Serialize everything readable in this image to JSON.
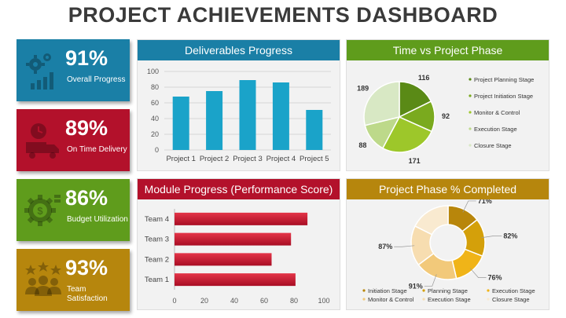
{
  "title": "PROJECT ACHIEVEMENTS DASHBOARD",
  "kpis": [
    {
      "value": "91%",
      "label": "Overall Progress",
      "color": "#1a7fa6",
      "icon": "gears-chart-icon"
    },
    {
      "value": "89%",
      "label": "On Time Delivery",
      "color": "#b3112b",
      "icon": "delivery-truck-clock-icon"
    },
    {
      "value": "86%",
      "label": "Budget Utilization",
      "color": "#5f9c1c",
      "icon": "money-gear-icon"
    },
    {
      "value": "93%",
      "label": "Team Satisfaction",
      "color": "#b6860d",
      "icon": "team-stars-icon"
    }
  ],
  "panels": {
    "deliverables": {
      "title": "Deliverables Progress",
      "color": "#1a7fa6"
    },
    "time_phase": {
      "title": "Time vs Project Phase",
      "color": "#5f9c1c"
    },
    "module": {
      "title": "Module Progress (Performance Score)",
      "color": "#b3112b"
    },
    "phase_pct": {
      "title": "Project Phase % Completed",
      "color": "#b6860d"
    }
  },
  "chart_data": [
    {
      "type": "bar",
      "title": "Deliverables Progress",
      "categories": [
        "Project 1",
        "Project 2",
        "Project 3",
        "Project 4",
        "Project 5"
      ],
      "values": [
        68,
        75,
        89,
        86,
        51
      ],
      "yticks": [
        "0",
        "20",
        "40",
        "60",
        "80",
        "100"
      ],
      "ylim": [
        0,
        100
      ],
      "grid": true,
      "color": "#1aa3c9"
    },
    {
      "type": "pie",
      "title": "Time vs Project Phase",
      "labels": [
        "Project Planning Stage",
        "Project Initiation Stage",
        "Monitor & Control",
        "Execution Stage",
        "Closure Stage"
      ],
      "values": [
        116,
        92,
        171,
        88,
        189
      ],
      "value_labels": [
        "116",
        "92",
        "171",
        "88",
        "189"
      ],
      "colors": [
        "#5a8a16",
        "#7aaa1e",
        "#9dc72a",
        "#bdd98a",
        "#d8e8c4"
      ],
      "legend": "right"
    },
    {
      "type": "bar",
      "orientation": "horizontal",
      "title": "Module Progress (Performance Score)",
      "categories": [
        "Team 1",
        "Team 2",
        "Team 3",
        "Team 4"
      ],
      "values": [
        81,
        65,
        78,
        89
      ],
      "xticks": [
        "0",
        "20",
        "40",
        "60",
        "80",
        "100"
      ],
      "xlim": [
        0,
        100
      ],
      "color": "#c8102e"
    },
    {
      "type": "pie",
      "subtype": "donut",
      "title": "Project Phase % Completed",
      "labels": [
        "Initiation Stage",
        "Planning Stage",
        "Execution Stage",
        "Monitor & Control",
        "Execution Stage",
        "Closure Stage"
      ],
      "values": [
        71,
        82,
        76,
        91,
        87,
        87
      ],
      "value_labels": [
        "71%",
        "82%",
        "76%",
        "91%",
        "87%",
        ""
      ],
      "colors": [
        "#b8860b",
        "#d4a00a",
        "#f0b418",
        "#f2c97a",
        "#f7ddb0",
        "#f9ead0"
      ],
      "legend": "bottom"
    }
  ]
}
